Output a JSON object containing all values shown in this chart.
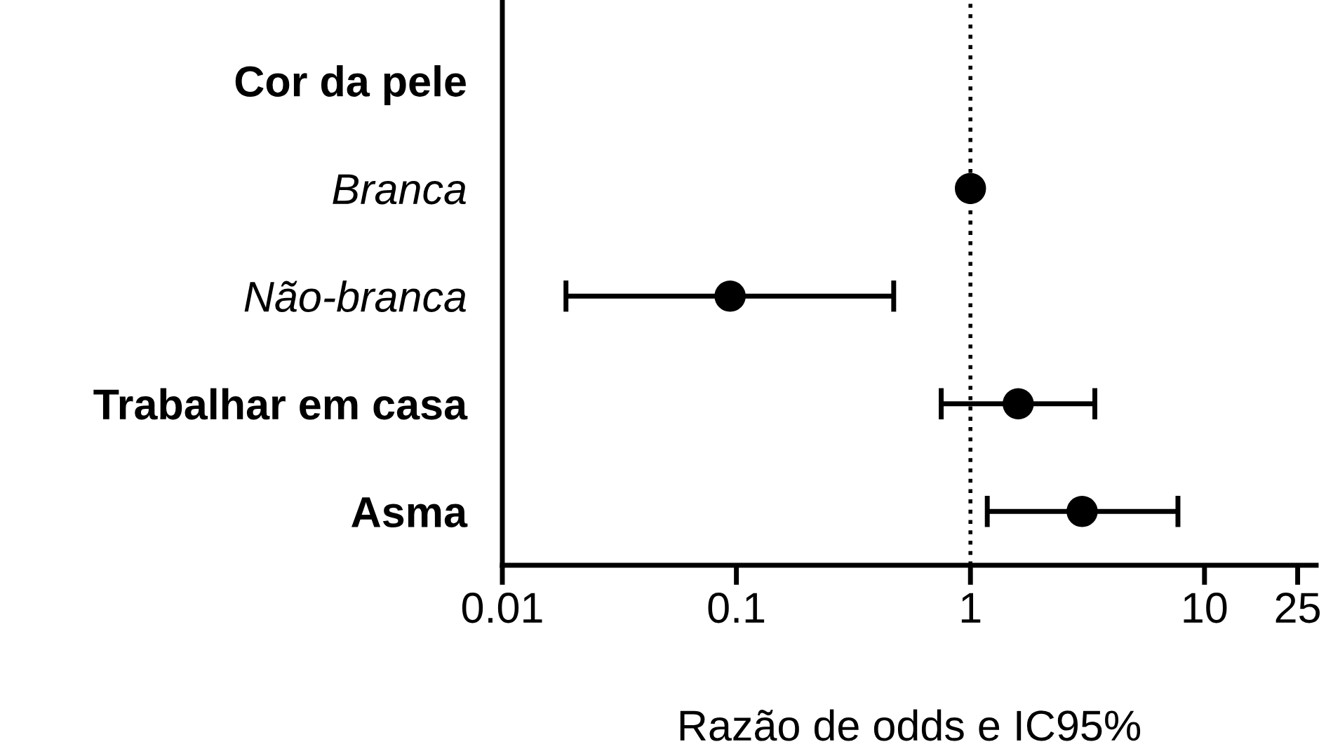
{
  "chart_data": {
    "type": "scatter",
    "orientation": "horizontal",
    "xlabel": "Razão de odds e IC95%",
    "categories": [
      "Cor da pele",
      "Branca",
      "Não-branca",
      "Trabalhar em casa",
      "Asma"
    ],
    "values": [
      null,
      1,
      0.094,
      1.6,
      3.0
    ],
    "errors": [
      null,
      null,
      [
        0.0187,
        0.47
      ],
      [
        0.75,
        3.4
      ],
      [
        1.18,
        7.7
      ]
    ],
    "color": "#000000",
    "marker": "circle",
    "log": "x",
    "xlim": [
      0.01,
      30
    ],
    "xticks": [
      0.01,
      0.1,
      1,
      10,
      25
    ],
    "ref_lines": [
      {
        "axis": "x",
        "value": 1,
        "line_style": "dotted",
        "color": "#000000"
      }
    ]
  }
}
